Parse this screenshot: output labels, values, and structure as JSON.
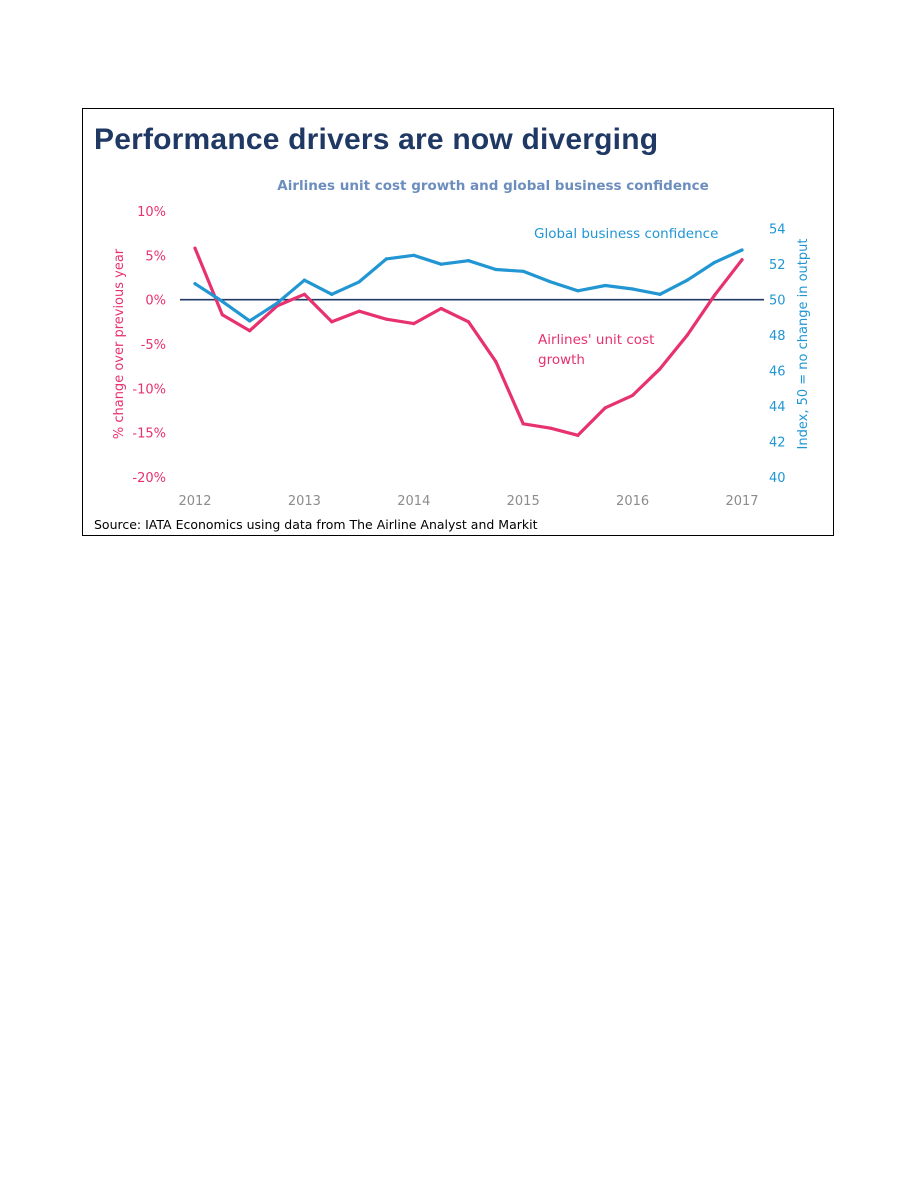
{
  "headline": "Performance drivers are now diverging",
  "source": "Source: IATA Economics using data from The Airline Analyst and Markit",
  "colors": {
    "headline": "#1f3864",
    "unit_cost": "#e8316f",
    "confidence": "#2196d3",
    "subtitle": "#6c8ebf",
    "zero_line": "#1f3864"
  },
  "chart_data": {
    "type": "line",
    "title": "Airlines unit cost growth and global business confidence",
    "x_ticks": [
      "2012",
      "2013",
      "2014",
      "2015",
      "2016",
      "2017"
    ],
    "x_range": [
      2012,
      2017
    ],
    "y_left": {
      "label": "% change over previous year",
      "range": [
        -20,
        10
      ],
      "ticks": [
        10,
        5,
        0,
        -5,
        -10,
        -15,
        -20
      ],
      "tick_labels": [
        "10%",
        "5%",
        "0%",
        "-5%",
        "-10%",
        "-15%",
        "-20%"
      ]
    },
    "y_right": {
      "label": "Index, 50 = no change in output",
      "range": [
        40,
        55
      ],
      "ticks": [
        54,
        52,
        50,
        48,
        46,
        44,
        42,
        40
      ],
      "tick_labels": [
        "54",
        "52",
        "50",
        "48",
        "46",
        "44",
        "42",
        "40"
      ]
    },
    "reference_line": {
      "axis": "right",
      "value": 50
    },
    "series": [
      {
        "name": "Airlines' unit cost growth",
        "axis": "left",
        "label_lines": [
          "Airlines' unit cost",
          "growth"
        ],
        "x": [
          2012.0,
          2012.25,
          2012.5,
          2012.75,
          2013.0,
          2013.25,
          2013.5,
          2013.75,
          2014.0,
          2014.25,
          2014.5,
          2014.75,
          2015.0,
          2015.25,
          2015.5,
          2015.75,
          2016.0,
          2016.25,
          2016.5,
          2016.75,
          2017.0
        ],
        "values": [
          5.8,
          -1.7,
          -3.5,
          -0.7,
          0.6,
          -2.5,
          -1.3,
          -2.2,
          -2.7,
          -1.0,
          -2.5,
          -7.0,
          -14.0,
          -14.5,
          -15.3,
          -12.2,
          -10.8,
          -7.8,
          -4.0,
          0.5,
          4.5
        ]
      },
      {
        "name": "Global business confidence",
        "axis": "right",
        "label_lines": [
          "Global business confidence"
        ],
        "x": [
          2012.0,
          2012.25,
          2012.5,
          2012.75,
          2013.0,
          2013.25,
          2013.5,
          2013.75,
          2014.0,
          2014.25,
          2014.5,
          2014.75,
          2015.0,
          2015.25,
          2015.5,
          2015.75,
          2016.0,
          2016.25,
          2016.5,
          2016.75,
          2017.0
        ],
        "values": [
          50.9,
          49.9,
          48.8,
          49.8,
          51.1,
          50.3,
          51.0,
          52.3,
          52.5,
          52.0,
          52.2,
          51.7,
          51.6,
          51.0,
          50.5,
          50.8,
          50.6,
          50.3,
          51.1,
          52.1,
          52.8
        ]
      }
    ]
  }
}
